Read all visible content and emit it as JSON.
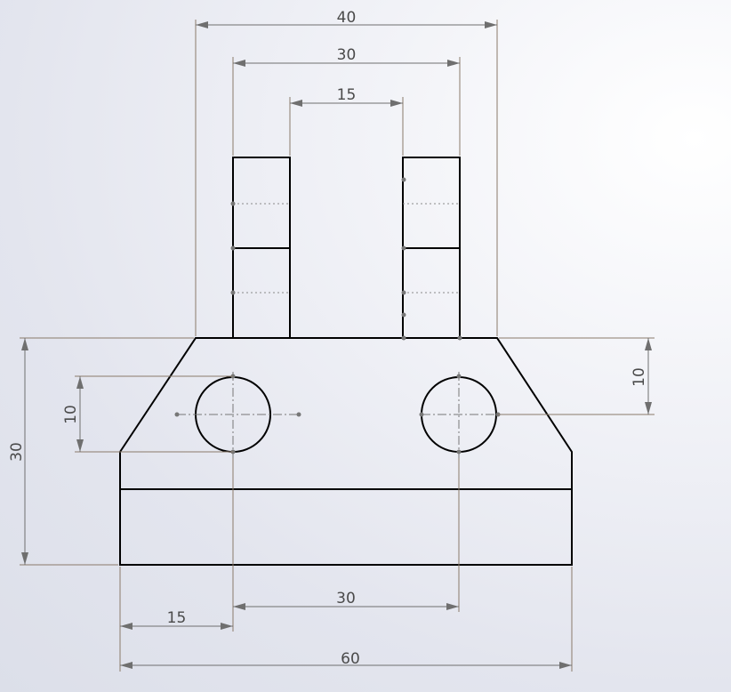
{
  "dimensions": {
    "top_outer_width": "40",
    "top_lug_span": "30",
    "top_gap": "15",
    "left_height": "30",
    "left_hole_height": "10",
    "right_hole_height": "10",
    "bottom_hole_spacing": "30",
    "bottom_hole_offset": "15",
    "bottom_total_width": "60"
  },
  "colors": {
    "outline": "#000000",
    "extension_line": "#8a7a6a",
    "dimension_line": "#6f6f6f",
    "dimension_text": "#4a4a4a"
  }
}
